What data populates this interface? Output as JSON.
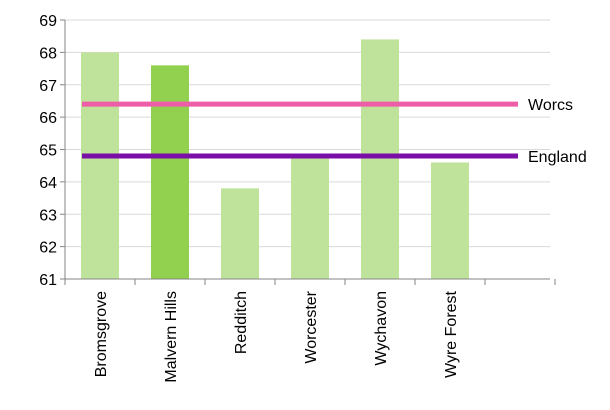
{
  "chart_data": {
    "type": "bar",
    "categories": [
      "Bromsgrove",
      "Malvern Hills",
      "Redditch",
      "Worcester",
      "Wychavon",
      "Wyre Forest"
    ],
    "values": [
      68.0,
      67.6,
      63.8,
      64.8,
      68.4,
      64.6
    ],
    "highlight_index": 1,
    "ylim": [
      61,
      69
    ],
    "yticks": [
      "61",
      "62",
      "63",
      "64",
      "65",
      "66",
      "67",
      "68",
      "69"
    ],
    "grid": true,
    "reference_lines": [
      {
        "label": "Worcs",
        "value": 66.4,
        "color": "#ee5ea8"
      },
      {
        "label": "England",
        "value": 64.8,
        "color": "#7a0fa8"
      }
    ],
    "colors": {
      "bar": "#c0e39b",
      "bar_highlight": "#92d050",
      "grid": "#d9d9d9",
      "axis": "#868686"
    }
  }
}
